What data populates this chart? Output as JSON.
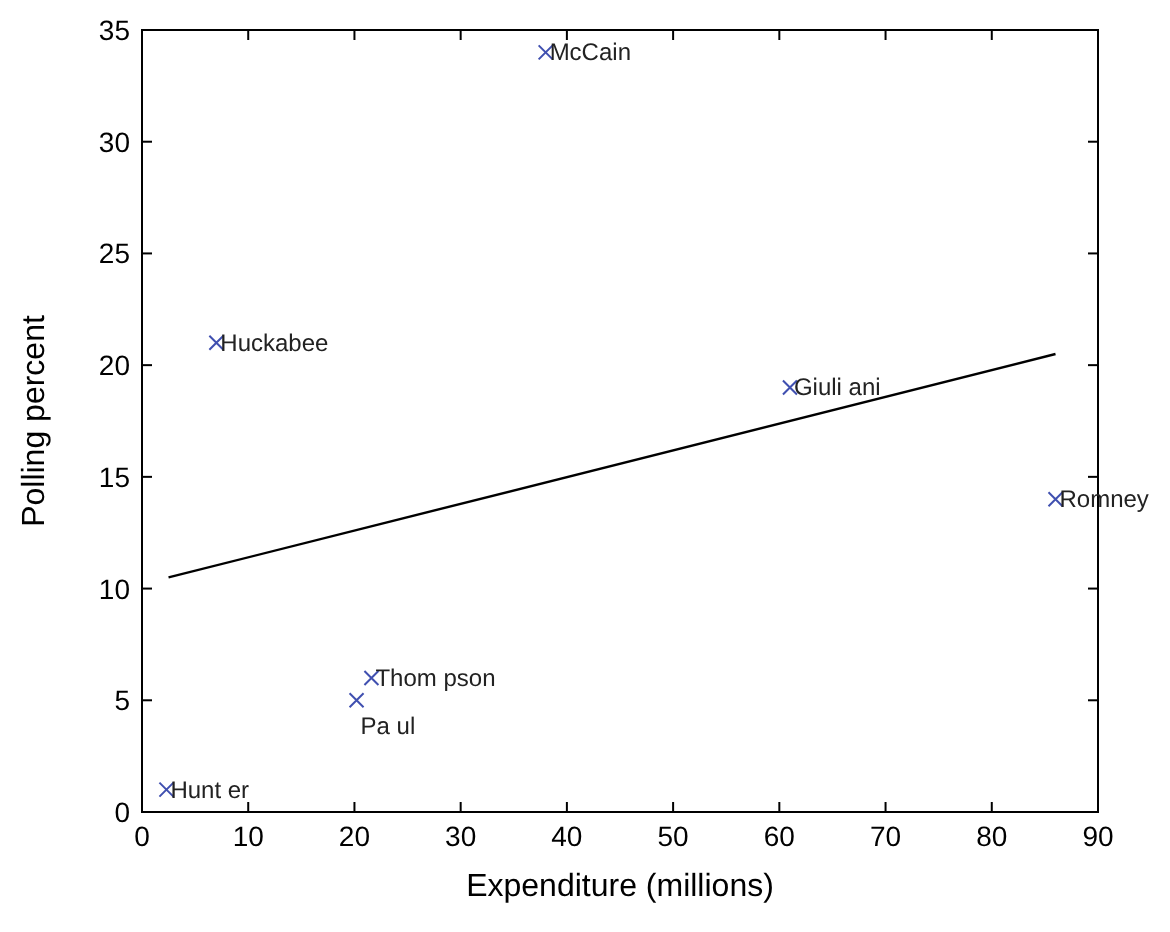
{
  "chart_data": {
    "type": "scatter",
    "xlabel": "Expenditure (millions)",
    "ylabel": "Polling percent",
    "xlim": [
      0,
      90
    ],
    "ylim": [
      0,
      35
    ],
    "xticks": [
      0,
      10,
      20,
      30,
      40,
      50,
      60,
      70,
      80,
      90
    ],
    "yticks": [
      0,
      5,
      10,
      15,
      20,
      25,
      30,
      35
    ],
    "grid": false,
    "marker": "cross",
    "series": [
      {
        "color": "#4050b0",
        "x": [
          38,
          7,
          61,
          86,
          21.6,
          20.2,
          2.3
        ],
        "values": [
          34,
          21,
          19,
          14,
          6,
          5,
          1
        ]
      },
      {
        "type": "line",
        "color": "#000000",
        "marker": "none",
        "line_style": "solid",
        "x": [
          2.5,
          86
        ],
        "values": [
          10.5,
          20.5
        ]
      }
    ],
    "annotations": [
      {
        "text": "McCain",
        "x": 38,
        "y": 34
      },
      {
        "text": "Huckabee",
        "x": 7,
        "y": 21
      },
      {
        "text": "Giuli ani",
        "x": 61,
        "y": 19
      },
      {
        "text": "Romney",
        "x": 86,
        "y": 14
      },
      {
        "text": "Thom pson",
        "x": 21.6,
        "y": 6
      },
      {
        "text": "Pa ul",
        "x": 20.2,
        "y": 5
      },
      {
        "text": "Hunt er",
        "x": 2.3,
        "y": 1
      }
    ]
  }
}
